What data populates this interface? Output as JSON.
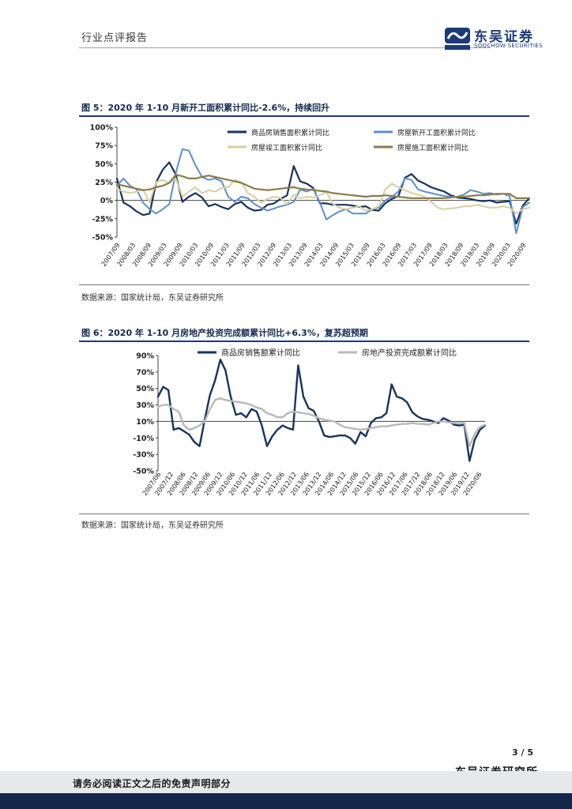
{
  "header": {
    "title": "行业点评报告"
  },
  "logo": {
    "name_cn": "东吴证券",
    "name_en": "SOOCHOW SECURITIES",
    "mark_text": "SCS"
  },
  "colors": {
    "navy": "#1b3a78",
    "dark_navy": "#17335f",
    "blue": "#5b8fd0",
    "beige": "#d9cfa0",
    "olive": "#8a7c48",
    "gray": "#b8b8b8"
  },
  "figure5": {
    "title": "图 5：2020 年 1-10 月新开工面积累计同比-2.6%，持续回升",
    "source": "数据来源：国家统计局，东吴证券研究所",
    "chart_data": {
      "type": "line",
      "ylim": [
        -50,
        100
      ],
      "yticks": [
        "100%",
        "75%",
        "50%",
        "25%",
        "0%",
        "-25%",
        "-50%"
      ],
      "xticks": [
        "2007/09",
        "2008/03",
        "2008/09",
        "2009/03",
        "2009/09",
        "2010/03",
        "2010/09",
        "2011/03",
        "2011/09",
        "2012/03",
        "2012/09",
        "2013/03",
        "2013/09",
        "2014/03",
        "2014/09",
        "2015/03",
        "2015/09",
        "2016/03",
        "2016/09",
        "2017/03",
        "2017/09",
        "2018/03",
        "2018/09",
        "2019/03",
        "2019/09",
        "2020/03",
        "2020/09"
      ],
      "legend": [
        "商品房销售面积累计同比",
        "房屋新开工面积累计同比",
        "房屋竣工面积累计同比",
        "房屋施工面积累计同比"
      ],
      "series": [
        {
          "name": "商品房销售面积累计同比",
          "color": "#17335f",
          "width": 2.2,
          "values": [
            30,
            -3,
            -8,
            -15,
            -20,
            -18,
            25,
            42,
            52,
            35,
            -2,
            5,
            10,
            4,
            -8,
            -5,
            -9,
            -12,
            -5,
            -2,
            -10,
            -14,
            -13,
            -6,
            -4,
            2,
            7,
            47,
            26,
            23,
            17,
            -4,
            -4,
            -6,
            -6,
            -6,
            -7,
            -9,
            -8,
            -13,
            -14,
            -4,
            2,
            6,
            31,
            36,
            27,
            23,
            18,
            15,
            12,
            7,
            4,
            3,
            2,
            0,
            -1,
            0,
            -3,
            -2,
            -1,
            -32,
            -7,
            3
          ]
        },
        {
          "name": "房屋新开工面积累计同比",
          "color": "#5b8fd0",
          "width": 2,
          "values": [
            20,
            30,
            20,
            15,
            -3,
            -12,
            -18,
            -12,
            -5,
            38,
            70,
            68,
            48,
            32,
            28,
            30,
            26,
            5,
            -2,
            5,
            3,
            -5,
            -10,
            -14,
            -11,
            -8,
            -6,
            -2,
            15,
            12,
            16,
            -3,
            -26,
            -20,
            -15,
            -12,
            -18,
            -18,
            -18,
            -12,
            -10,
            0,
            5,
            12,
            30,
            28,
            15,
            12,
            10,
            8,
            6,
            5,
            5,
            8,
            14,
            12,
            9,
            10,
            8,
            9,
            6,
            -45,
            -9,
            -3
          ]
        },
        {
          "name": "房屋竣工面积累计同比",
          "color": "#d9cfa0",
          "width": 2,
          "values": [
            16,
            12,
            10,
            12,
            15,
            -3,
            25,
            28,
            24,
            30,
            5,
            12,
            18,
            10,
            14,
            12,
            17,
            18,
            28,
            25,
            10,
            5,
            -3,
            2,
            5,
            3,
            -5,
            8,
            3,
            5,
            4,
            7,
            12,
            -5,
            -10,
            -12,
            -10,
            -8,
            -14,
            -12,
            -8,
            15,
            23,
            18,
            14,
            10,
            8,
            5,
            -2,
            -10,
            -12,
            -11,
            -10,
            -8,
            -8,
            -6,
            -8,
            -10,
            -10,
            -8,
            -10,
            -18,
            -12,
            -10
          ]
        },
        {
          "name": "房屋施工面积累计同比",
          "color": "#8a7c48",
          "width": 2.2,
          "values": [
            22,
            20,
            18,
            16,
            14,
            15,
            18,
            20,
            24,
            35,
            33,
            30,
            30,
            32,
            34,
            32,
            30,
            28,
            26,
            24,
            20,
            16,
            15,
            14,
            15,
            16,
            17,
            18,
            16,
            15,
            14,
            13,
            12,
            10,
            9,
            8,
            7,
            6,
            5,
            6,
            6,
            7,
            6,
            5,
            4,
            3,
            3,
            3,
            3,
            3,
            3,
            4,
            5,
            5,
            6,
            7,
            7,
            8,
            9,
            9,
            9,
            3,
            3,
            3
          ]
        }
      ]
    }
  },
  "figure6": {
    "title": "图 6：2020 年 1-10 月房地产投资完成额累计同比+6.3%，复苏超预期",
    "source": "数据来源：国家统计局，东吴证券研究所",
    "chart_data": {
      "type": "line",
      "ylim": [
        -50,
        90
      ],
      "yticks": [
        "90%",
        "70%",
        "50%",
        "30%",
        "10%",
        "-10%",
        "-30%",
        "-50%"
      ],
      "xticks": [
        "2007/06",
        "2007/12",
        "2008/06",
        "2008/12",
        "2009/06",
        "2009/12",
        "2010/06",
        "2010/12",
        "2011/06",
        "2011/12",
        "2012/06",
        "2012/12",
        "2013/06",
        "2013/12",
        "2014/06",
        "2014/12",
        "2015/06",
        "2015/12",
        "2016/06",
        "2016/12",
        "2017/06",
        "2017/12",
        "2018/06",
        "2018/12",
        "2019/06",
        "2019/12",
        "2020/06"
      ],
      "legend": [
        "商品房销售额累计同比",
        "房地产投资完成额累计同比"
      ],
      "series": [
        {
          "name": "商品房销售额累计同比",
          "color": "#17335f",
          "width": 2.4,
          "values": [
            40,
            52,
            48,
            0,
            2,
            -2,
            -6,
            -15,
            -20,
            12,
            42,
            60,
            85,
            72,
            40,
            18,
            20,
            15,
            25,
            22,
            5,
            -20,
            -8,
            0,
            5,
            2,
            0,
            78,
            40,
            26,
            23,
            10,
            -7,
            -9,
            -8,
            -7,
            -7,
            -10,
            -17,
            -3,
            -8,
            8,
            14,
            15,
            20,
            55,
            40,
            38,
            33,
            21,
            16,
            13,
            12,
            10,
            8,
            14,
            11,
            6,
            5,
            6,
            -38,
            -12,
            0,
            5
          ]
        },
        {
          "name": "房地产投资完成额累计同比",
          "color": "#b8b8b8",
          "width": 2.4,
          "values": [
            28,
            30,
            30,
            25,
            22,
            5,
            0,
            2,
            5,
            10,
            25,
            36,
            38,
            36,
            35,
            34,
            33,
            32,
            30,
            27,
            25,
            20,
            18,
            15,
            15,
            20,
            22,
            21,
            20,
            19,
            17,
            14,
            12,
            11,
            10,
            6,
            3,
            2,
            1,
            0,
            1,
            2,
            3,
            4,
            4,
            5,
            6,
            7,
            7,
            8,
            7,
            7,
            6,
            8,
            10,
            10,
            9,
            8,
            8,
            8,
            -20,
            -5,
            3,
            6
          ]
        }
      ]
    }
  },
  "footer": {
    "page_number": "3 / 5",
    "org": "东吴证券研究所",
    "disclaimer": "请务必阅读正文之后的免责声明部分"
  }
}
